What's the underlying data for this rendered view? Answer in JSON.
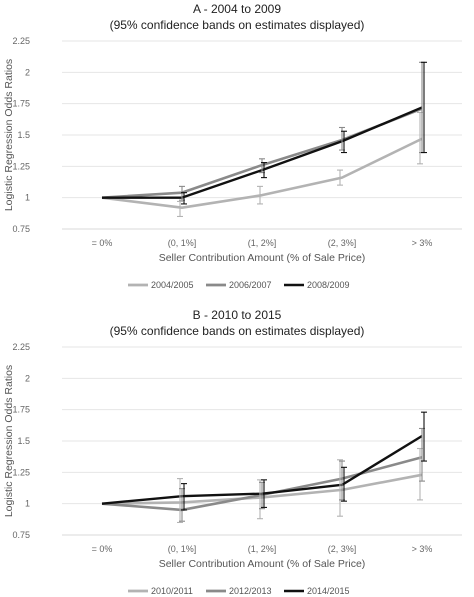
{
  "chart_data": [
    {
      "type": "line",
      "title": "A - 2004 to 2009",
      "subtitle": "(95% confidence bands on estimates displayed)",
      "xlabel": "Seller Contribution Amount (% of Sale Price)",
      "ylabel": "Logistic Regression Odds Ratios",
      "categories": [
        "= 0%",
        "(0, 1%]",
        "(1, 2%]",
        "(2, 3%]",
        "> 3%"
      ],
      "ylim": [
        0.75,
        2.25
      ],
      "yticks": [
        "0.75",
        "1",
        "1.25",
        "1.5",
        "1.75",
        "2",
        "2.25"
      ],
      "grid": true,
      "legend_position": "bottom",
      "series": [
        {
          "name": "2004/2005",
          "color": "#b3b3b3",
          "values": [
            1,
            0.92,
            1.02,
            1.16,
            1.47
          ],
          "ci_low": [
            1,
            0.85,
            0.95,
            1.1,
            1.27
          ],
          "ci_high": [
            1,
            0.97,
            1.09,
            1.22,
            1.68
          ]
        },
        {
          "name": "2006/2007",
          "color": "#8a8a8a",
          "values": [
            1,
            1.04,
            1.26,
            1.46,
            1.71
          ],
          "ci_low": [
            1,
            0.98,
            1.2,
            1.38,
            1.36
          ],
          "ci_high": [
            1,
            1.09,
            1.31,
            1.56,
            2.08
          ]
        },
        {
          "name": "2008/2009",
          "color": "#111111",
          "values": [
            1,
            1.0,
            1.22,
            1.45,
            1.72
          ],
          "ci_low": [
            1,
            0.95,
            1.16,
            1.36,
            1.36
          ],
          "ci_high": [
            1,
            1.04,
            1.28,
            1.53,
            2.08
          ]
        }
      ]
    },
    {
      "type": "line",
      "title": "B - 2010 to 2015",
      "subtitle": "(95% confidence bands on estimates displayed)",
      "xlabel": "Seller Contribution Amount (% of Sale Price)",
      "ylabel": "Logistic Regression Odds Ratios",
      "categories": [
        "= 0%",
        "(0, 1%]",
        "(1, 2%]",
        "(2, 3%]",
        "> 3%"
      ],
      "ylim": [
        0.75,
        2.25
      ],
      "yticks": [
        "0.75",
        "1",
        "1.25",
        "1.5",
        "1.75",
        "2",
        "2.25"
      ],
      "grid": true,
      "legend_position": "bottom",
      "series": [
        {
          "name": "2010/2011",
          "color": "#b3b3b3",
          "values": [
            1,
            1.01,
            1.05,
            1.11,
            1.23
          ],
          "ci_low": [
            1,
            0.85,
            0.88,
            0.9,
            1.03
          ],
          "ci_high": [
            1,
            1.2,
            1.19,
            1.35,
            1.44
          ]
        },
        {
          "name": "2012/2013",
          "color": "#8a8a8a",
          "values": [
            1,
            0.95,
            1.07,
            1.2,
            1.37
          ],
          "ci_low": [
            1,
            0.86,
            0.96,
            1.03,
            1.18
          ],
          "ci_high": [
            1,
            1.12,
            1.17,
            1.34,
            1.6
          ]
        },
        {
          "name": "2014/2015",
          "color": "#111111",
          "values": [
            1,
            1.06,
            1.08,
            1.15,
            1.54
          ],
          "ci_low": [
            1,
            0.95,
            0.97,
            1.02,
            1.34
          ],
          "ci_high": [
            1,
            1.16,
            1.19,
            1.29,
            1.73
          ]
        }
      ]
    }
  ]
}
